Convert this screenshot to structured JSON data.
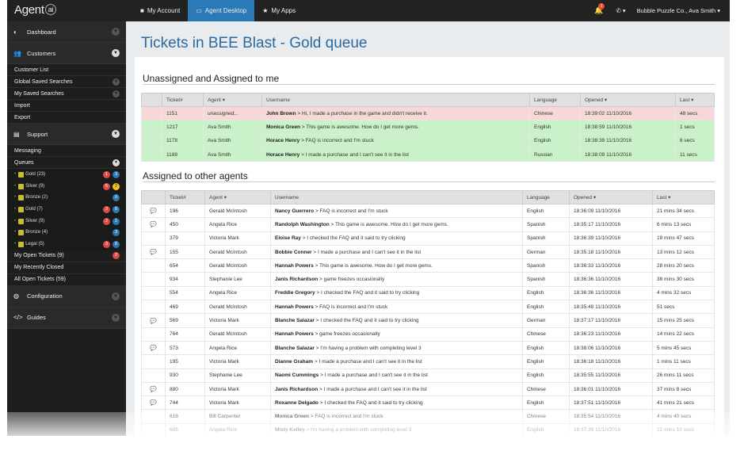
{
  "app": {
    "logo": "Agent",
    "logo_ai": "ai"
  },
  "topnav": [
    {
      "icon": "person-icon",
      "label": "My Account"
    },
    {
      "icon": "monitor-icon",
      "label": "Agent Desktop"
    },
    {
      "icon": "star-icon",
      "label": "My Apps"
    }
  ],
  "topright": {
    "notification_count": "1",
    "account": "Bubble Puzzle Co., Ava Smith"
  },
  "sidebar": {
    "dashboard": "Dashboard",
    "customers": "Customers",
    "customer_items": [
      "Customer List",
      "Global Saved Searches",
      "My Saved Searches",
      "Import",
      "Export"
    ],
    "support": "Support",
    "support_items": {
      "messaging": "Messaging",
      "queues": "Queues"
    },
    "queues": [
      {
        "label": "Gold (23)",
        "r": "1",
        "b": "3"
      },
      {
        "label": "Silver (9)",
        "r": "5",
        "y": "2"
      },
      {
        "label": "Bronze (2)",
        "b": "0"
      },
      {
        "label": "Gold (7)",
        "r": "3",
        "b": "0"
      },
      {
        "label": "Silver (9)",
        "r": "2",
        "b": "1"
      },
      {
        "label": "Bronze (4)",
        "b": "3"
      },
      {
        "label": "Legal (5)",
        "r": "3",
        "b": "0"
      }
    ],
    "open_tickets": "My Open Tickets (9)",
    "open_badge": "2",
    "recently_closed": "My Recently Closed",
    "all_open": "All Open Tickets (59)",
    "configuration": "Configuration",
    "guides": "Guides"
  },
  "main": {
    "title": "Tickets in BEE Blast - Gold queue",
    "section1": "Unassigned and Assigned to me",
    "section2": "Assigned to other agents",
    "headers": {
      "ticket": "Ticket#",
      "agent": "Agent ▾",
      "username": "Username",
      "language": "Language",
      "opened": "Opened ▾",
      "last": "Last ▾"
    },
    "mine": [
      {
        "id": "1151",
        "agent": "unassigned...",
        "user": "John Brown",
        "msg": " > Hi, I made a purchase in the game and didn't receive it.",
        "lang": "Chinese",
        "opened": "18:39:02 11/10/2016",
        "last": "48 secs",
        "cls": "pink"
      },
      {
        "id": "1217",
        "agent": "Ava Smith",
        "user": "Monica Green",
        "msg": " > This game is awesome. How do I get more gems.",
        "lang": "English",
        "opened": "18:38:59 11/10/2016",
        "last": "1 secs",
        "cls": "green"
      },
      {
        "id": "1178",
        "agent": "Ava Smith",
        "user": "Horace Henry",
        "msg": " > FAQ is incorrect and I'm stuck",
        "lang": "English",
        "opened": "18:38:39 11/10/2016",
        "last": "6 secs",
        "cls": "green"
      },
      {
        "id": "1188",
        "agent": "Ava Smith",
        "user": "Horace Henry",
        "msg": " > I made a purchase and I can't see it in the list",
        "lang": "Russian",
        "opened": "18:38:09 11/10/2016",
        "last": "11 secs",
        "cls": "green"
      }
    ],
    "others": [
      {
        "c": true,
        "id": "196",
        "agent": "Gerald McIntosh",
        "user": "Nancy Guerrero",
        "msg": " > FAQ is incorrect and I'm stuck",
        "lang": "English",
        "opened": "18:36:09 11/10/2016",
        "last": "21 mins 34 secs"
      },
      {
        "c": true,
        "id": "450",
        "agent": "Angela Rice",
        "user": "Randolph Washington",
        "msg": " > This game is awesome. How do I get more gems.",
        "lang": "Spanish",
        "opened": "18:35:17 11/10/2016",
        "last": "6 mins 13 secs"
      },
      {
        "c": false,
        "id": "379",
        "agent": "Victoria Mark",
        "user": "Eloise Ray",
        "msg": " > I checked the FAQ and it said to try clicking",
        "lang": "Spanish",
        "opened": "18:36:39 11/10/2016",
        "last": "19 mins 47 secs"
      },
      {
        "c": true,
        "id": "155",
        "agent": "Gerald McIntosh",
        "user": "Bobbie Conner",
        "msg": " > I made a purchase and I can't see it in the list",
        "lang": "German",
        "opened": "18:35:18 11/10/2016",
        "last": "13 mins 12 secs"
      },
      {
        "c": false,
        "id": "654",
        "agent": "Gerald McIntosh",
        "user": "Hannah Powers",
        "msg": " > This game is awesome. How do I get more gems.",
        "lang": "Spanish",
        "opened": "18:36:33 11/10/2016",
        "last": "28 mins 20 secs"
      },
      {
        "c": false,
        "id": "934",
        "agent": "Stephanie Lee",
        "user": "Janis Richardson",
        "msg": " > game freezes occasionally",
        "lang": "Spanish",
        "opened": "18:36:36 11/10/2016",
        "last": "38 mins 30 secs"
      },
      {
        "c": false,
        "id": "554",
        "agent": "Angela Rice",
        "user": "Freddie Gregory",
        "msg": " > I checked the FAQ and it said to try clicking",
        "lang": "English",
        "opened": "18:36:36 11/10/2016",
        "last": "4 mins 32 secs"
      },
      {
        "c": false,
        "id": "469",
        "agent": "Gerald McIntosh",
        "user": "Hannah Powers",
        "msg": " > FAQ is incorrect and I'm stuck",
        "lang": "English",
        "opened": "18:35:48 11/10/2016",
        "last": "51 secs"
      },
      {
        "c": true,
        "id": "569",
        "agent": "Victoria Mark",
        "user": "Blanche Salazar",
        "msg": " > I checked the FAQ and it said to try clicking",
        "lang": "German",
        "opened": "18:37:17 11/10/2016",
        "last": "15 mins 25 secs"
      },
      {
        "c": false,
        "id": "764",
        "agent": "Gerald McIntosh",
        "user": "Hannah Powers",
        "msg": " > game freezes occasionally",
        "lang": "Chinese",
        "opened": "18:36:23 11/10/2016",
        "last": "14 mins 22 secs"
      },
      {
        "c": true,
        "id": "573",
        "agent": "Angela Rice",
        "user": "Blanche Salazar",
        "msg": " > I'm having a problem with completing level 3",
        "lang": "English",
        "opened": "18:38:06 11/10/2016",
        "last": "5 mins 45 secs"
      },
      {
        "c": false,
        "id": "195",
        "agent": "Victoria Mark",
        "user": "Dianne Graham",
        "msg": " > I made a purchase and I can't see it in the list",
        "lang": "English",
        "opened": "18:36:18 11/10/2016",
        "last": "1 mins 11 secs"
      },
      {
        "c": false,
        "id": "930",
        "agent": "Stephanie Lee",
        "user": "Naomi Cummings",
        "msg": " > I made a purchase and I can't see it in the list",
        "lang": "English",
        "opened": "18:35:55 11/10/2016",
        "last": "26 mins 11 secs"
      },
      {
        "c": true,
        "id": "880",
        "agent": "Victoria Mark",
        "user": "Janis Richardson",
        "msg": " > I made a purchase and I can't see it in the list",
        "lang": "Chinese",
        "opened": "18:36:01 11/10/2016",
        "last": "37 mins 8 secs"
      },
      {
        "c": true,
        "id": "744",
        "agent": "Victoria Mark",
        "user": "Roxanne Delgado",
        "msg": " > I checked the FAQ and it said to try clicking",
        "lang": "English",
        "opened": "18:37:51 11/10/2016",
        "last": "41 mins 21 secs"
      },
      {
        "c": false,
        "id": "618",
        "agent": "Bill Carpenter",
        "user": "Monica Green",
        "msg": " > FAQ is incorrect and I'm stuck",
        "lang": "Chinese",
        "opened": "18:35:54 11/10/2016",
        "last": "4 mins 40 secs"
      },
      {
        "c": false,
        "id": "685",
        "agent": "Angela Rice",
        "user": "Misty Kelley",
        "msg": " > I'm having a problem with completing level 3",
        "lang": "English",
        "opened": "18:37:39 11/10/2016",
        "last": "12 mins 10 secs"
      }
    ]
  }
}
